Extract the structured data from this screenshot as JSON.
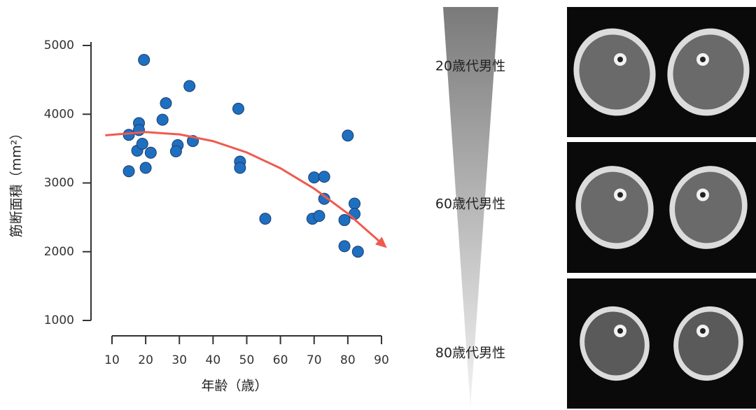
{
  "chart_data": {
    "type": "scatter",
    "x_label": "年齢（歳）",
    "y_label": "筋断面積（mm²）",
    "xlim": [
      10,
      90
    ],
    "xticks": [
      10,
      20,
      30,
      40,
      50,
      60,
      70,
      80,
      90
    ],
    "ylim": [
      1000,
      5000
    ],
    "yticks": [
      1000,
      2000,
      3000,
      4000,
      5000
    ],
    "series": [
      {
        "color": "#1f6fc1",
        "x": [
          15,
          15,
          18,
          18,
          17.5,
          19,
          19.5,
          20,
          21.5,
          25,
          26,
          29.5,
          29,
          33,
          34,
          47.5,
          48,
          48,
          55.5,
          70,
          73,
          73,
          69.5,
          71.5,
          80,
          82,
          82,
          79,
          79,
          83
        ],
        "values": [
          3700,
          3170,
          3870,
          3770,
          3470,
          3570,
          4790,
          3220,
          3440,
          3920,
          4160,
          3550,
          3460,
          4410,
          3610,
          4080,
          3310,
          3220,
          2480,
          3080,
          3090,
          2770,
          2480,
          2520,
          3690,
          2700,
          2550,
          2460,
          2080,
          2000
        ]
      }
    ],
    "trend": {
      "color": "#f05a4f",
      "x": [
        8,
        20,
        30,
        40,
        50,
        60,
        70,
        80,
        91
      ],
      "values": [
        3693,
        3740,
        3707,
        3608,
        3444,
        3214,
        2918,
        2556,
        2080
      ]
    }
  },
  "gradient_labels": [
    "20歳代男性",
    "60歳代男性",
    "80歳代男性"
  ]
}
